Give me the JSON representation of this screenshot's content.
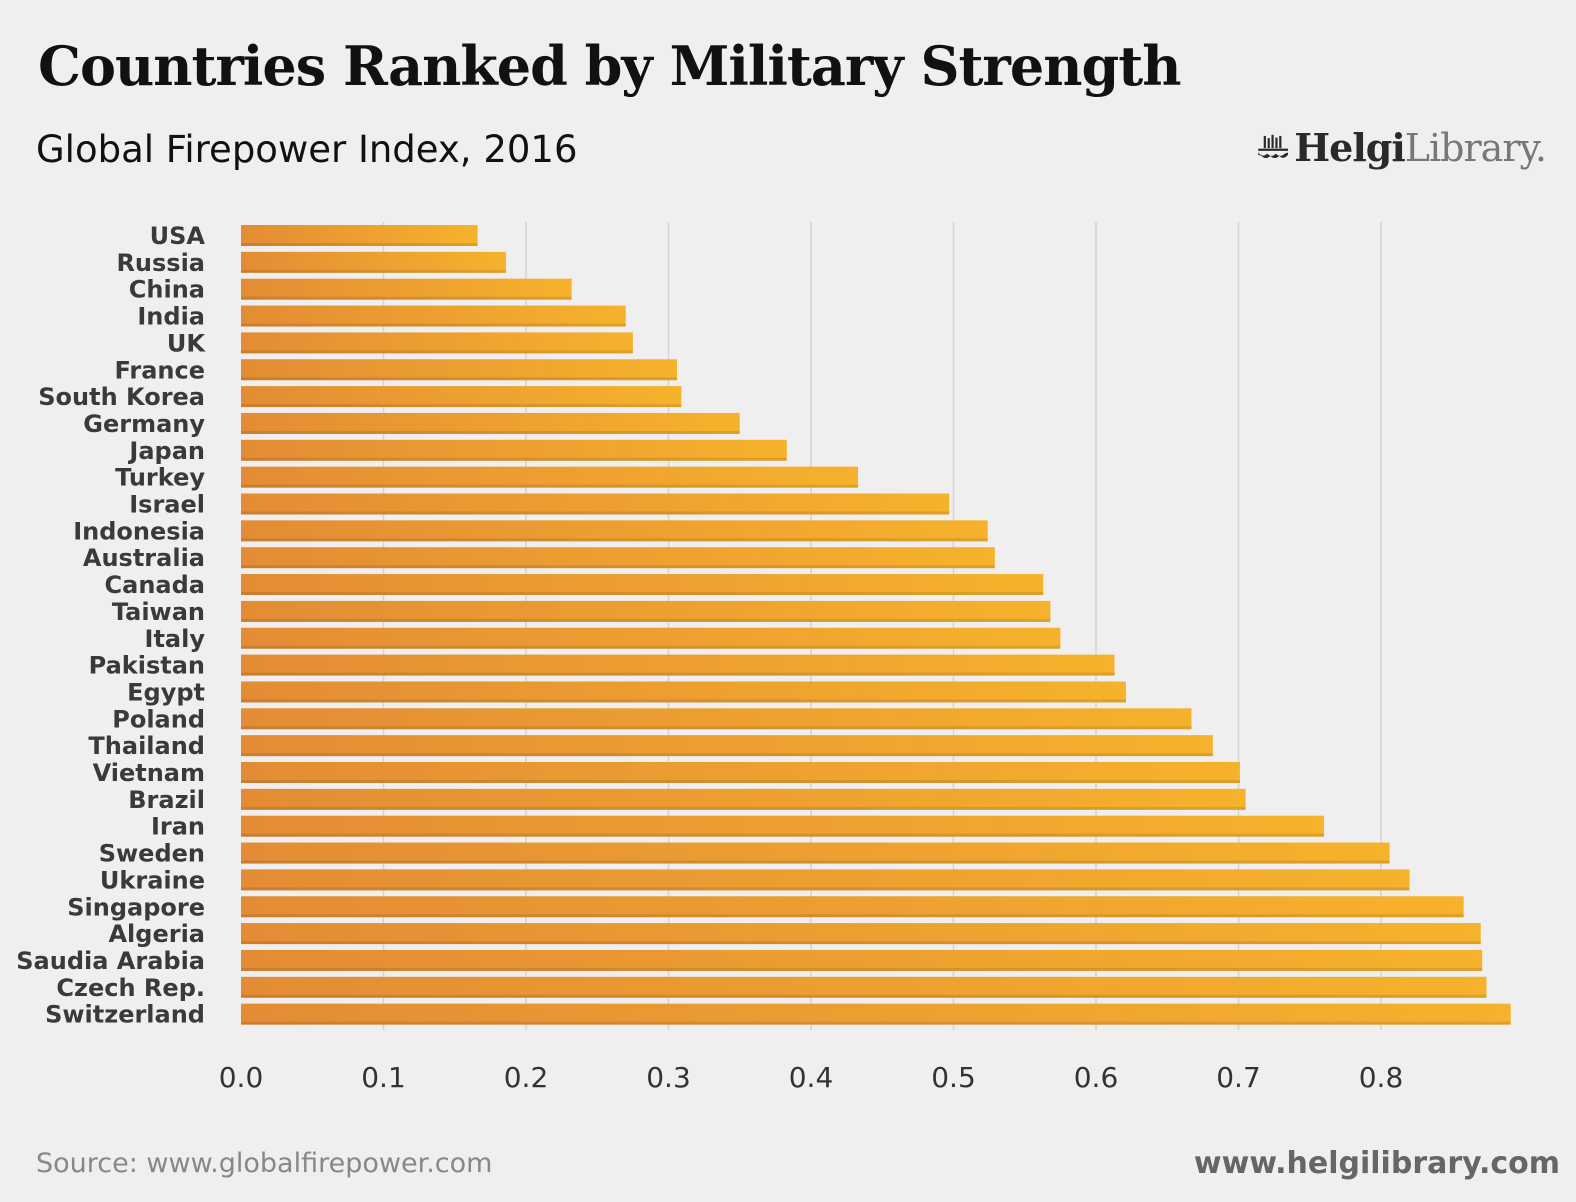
{
  "header": {
    "title": "Countries Ranked by Military Strength",
    "subtitle": "Global Firepower Index, 2016"
  },
  "logo": {
    "part1": "Helgi",
    "part2": "Library.",
    "icon": "library-logo-icon"
  },
  "footer": {
    "source": "Source: www.globalfirepower.com",
    "site": "www.helgilibrary.com"
  },
  "colors": {
    "bar_start": "#e38c35",
    "bar_end": "#f6b22c",
    "grid": "#d4d4d4",
    "background": "#efefef"
  },
  "chart_data": {
    "type": "bar",
    "orientation": "horizontal",
    "title": "Countries Ranked by Military Strength",
    "subtitle": "Global Firepower Index, 2016",
    "xlabel": "",
    "ylabel": "",
    "xlim": [
      0,
      0.9
    ],
    "xticks": [
      "0.0",
      "0.1",
      "0.2",
      "0.3",
      "0.4",
      "0.5",
      "0.6",
      "0.7",
      "0.8"
    ],
    "grid": true,
    "categories": [
      "USA",
      "Russia",
      "China",
      "India",
      "UK",
      "France",
      "South Korea",
      "Germany",
      "Japan",
      "Turkey",
      "Israel",
      "Indonesia",
      "Australia",
      "Canada",
      "Taiwan",
      "Italy",
      "Pakistan",
      "Egypt",
      "Poland",
      "Thailand",
      "Vietnam",
      "Brazil",
      "Iran",
      "Sweden",
      "Ukraine",
      "Singapore",
      "Algeria",
      "Saudia Arabia",
      "Czech Rep.",
      "Switzerland"
    ],
    "values": [
      0.166,
      0.186,
      0.232,
      0.27,
      0.275,
      0.306,
      0.309,
      0.35,
      0.383,
      0.433,
      0.497,
      0.524,
      0.529,
      0.563,
      0.568,
      0.575,
      0.613,
      0.621,
      0.667,
      0.682,
      0.701,
      0.705,
      0.76,
      0.806,
      0.82,
      0.858,
      0.87,
      0.871,
      0.874,
      0.891
    ]
  }
}
